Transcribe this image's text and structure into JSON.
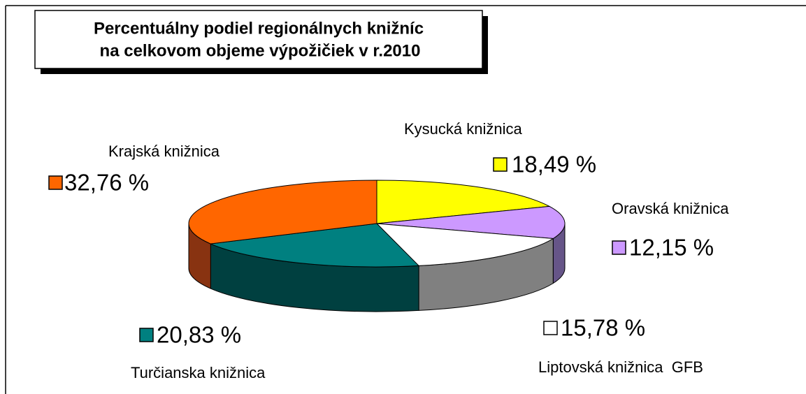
{
  "chart_data": {
    "type": "pie3d",
    "title": [
      "Percentuálny podiel regionálnych knižníc",
      "na celkovom objeme výpožičiek v r.2010"
    ],
    "categories": [
      "Kysucká knižnica",
      "Oravská knižnica",
      "Liptovská knižnica  GFB",
      "Turčianska knižnica",
      "Krajská knižnica"
    ],
    "values": [
      18.49,
      12.15,
      15.78,
      20.83,
      32.76
    ],
    "value_labels": [
      "18,49 %",
      "12,15 %",
      "15,78 %",
      "20,83 %",
      "32,76 %"
    ],
    "colors": [
      "#ffff00",
      "#cc99ff",
      "#ffffff",
      "#008080",
      "#ff6600"
    ],
    "side_colors": [
      "#999900",
      "#665588",
      "#808080",
      "#004040",
      "#883311"
    ]
  }
}
